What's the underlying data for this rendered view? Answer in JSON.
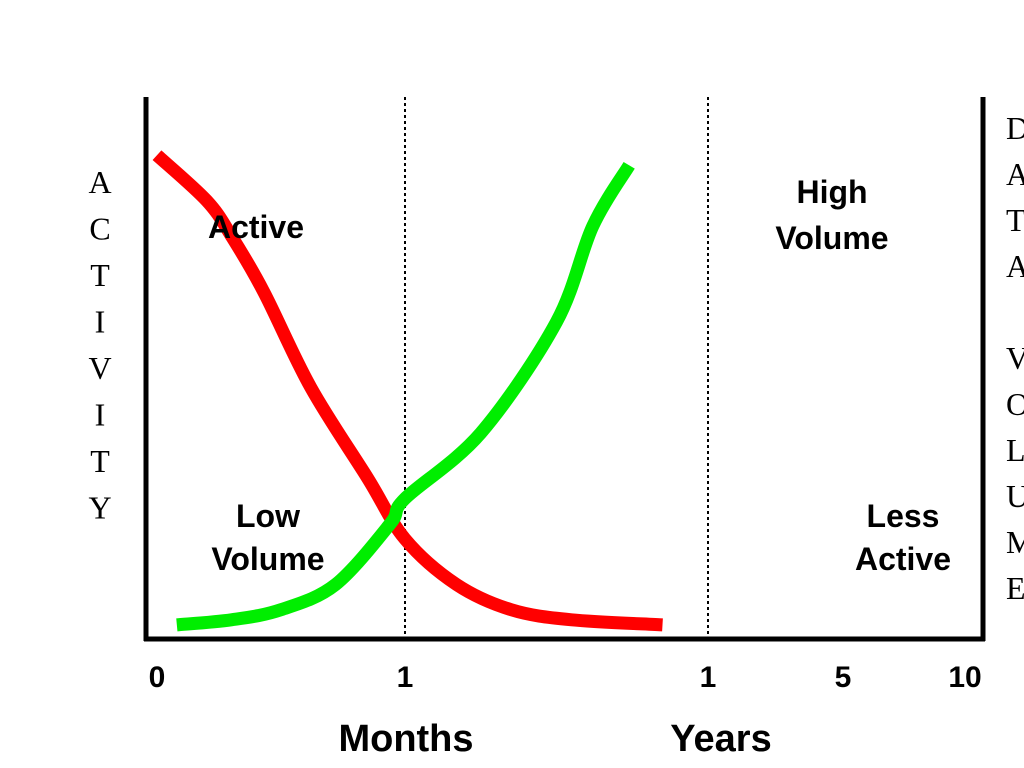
{
  "chart_data": {
    "type": "line",
    "ylabel": "ACTIVITY",
    "right_label_words": [
      "DATA",
      "VOLUME"
    ],
    "xlabel_segments": [
      "Months",
      "Years"
    ],
    "x_ticks": [
      "0",
      "1",
      "1",
      "5",
      "10"
    ],
    "dividers_at_ticks": [
      1,
      2
    ],
    "series": [
      {
        "name": "Activity",
        "color": "#ff0000",
        "start_label": "Active",
        "end_label": "Less Active",
        "values": [
          [
            0.0,
            0.96
          ],
          [
            0.2,
            0.87
          ],
          [
            0.3,
            0.8
          ],
          [
            0.43,
            0.69
          ],
          [
            0.62,
            0.5
          ],
          [
            0.85,
            0.32
          ],
          [
            1.0,
            0.2
          ],
          [
            1.17,
            0.11
          ],
          [
            1.35,
            0.06
          ],
          [
            1.55,
            0.04
          ],
          [
            1.85,
            0.03
          ]
        ]
      },
      {
        "name": "Volume",
        "color": "#00ee00",
        "start_label": "Low Volume",
        "end_label": "High Volume",
        "values": [
          [
            0.08,
            0.03
          ],
          [
            0.3,
            0.04
          ],
          [
            0.5,
            0.06
          ],
          [
            0.72,
            0.11
          ],
          [
            0.94,
            0.23
          ],
          [
            1.0,
            0.28
          ],
          [
            1.25,
            0.41
          ],
          [
            1.5,
            0.63
          ],
          [
            1.62,
            0.82
          ],
          [
            1.74,
            0.94
          ]
        ]
      }
    ],
    "annotations": [
      {
        "label": "Active",
        "series": 0
      },
      {
        "label": "Low Volume",
        "series": 1
      },
      {
        "label": "High Volume",
        "series": 1
      },
      {
        "label": "Less Active",
        "series": 0
      }
    ],
    "grid": false,
    "legend": "none"
  }
}
